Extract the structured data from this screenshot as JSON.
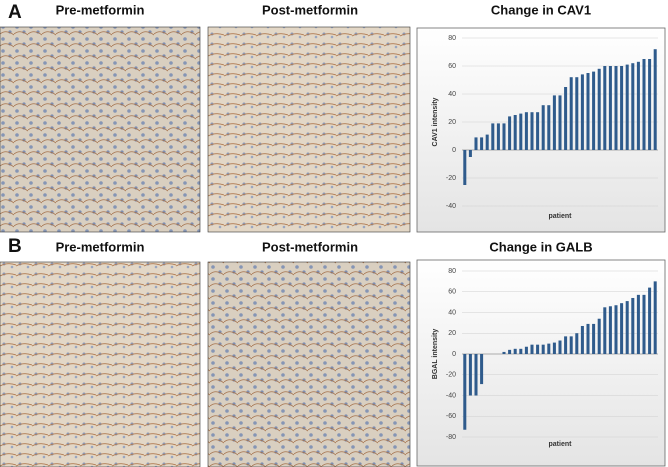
{
  "figure": {
    "rows": [
      {
        "label": "A",
        "headers": [
          "Pre-metformin",
          "Post-metformin"
        ]
      },
      {
        "label": "B",
        "headers": [
          "Pre-metformin",
          "Post-metformin"
        ]
      }
    ]
  },
  "chart_data": [
    {
      "type": "bar",
      "title": "Change in CAV1",
      "x_label": "patient",
      "y_label": "CAV1 intensity",
      "color": "#2f5b8c",
      "grid": true,
      "values": [
        -25,
        -5,
        9,
        9,
        11,
        19,
        19,
        19,
        24,
        25,
        26,
        27,
        27,
        27,
        32,
        32,
        39,
        39,
        45,
        52,
        52,
        54,
        55,
        56,
        58,
        60,
        60,
        60,
        60,
        61,
        62,
        63,
        65,
        65,
        72
      ],
      "ylim": [
        -40,
        80
      ],
      "yticks": [
        -40,
        -20,
        0,
        20,
        40,
        60,
        80
      ]
    },
    {
      "type": "bar",
      "title": "Change in GALB",
      "x_label": "patient",
      "y_label": "BGAL intensity",
      "color": "#2f5b8c",
      "grid": true,
      "values": [
        -73,
        -40,
        -40,
        -29,
        0,
        0,
        0,
        2,
        4,
        5,
        5,
        7,
        9,
        9,
        9,
        10,
        11,
        13,
        17,
        17,
        20,
        27,
        29,
        29,
        34,
        45,
        46,
        47,
        49,
        51,
        54,
        57,
        57,
        64,
        70
      ],
      "ylim": [
        -80,
        80
      ],
      "yticks": [
        -80,
        -60,
        -40,
        -20,
        0,
        20,
        40,
        60,
        80
      ]
    }
  ]
}
